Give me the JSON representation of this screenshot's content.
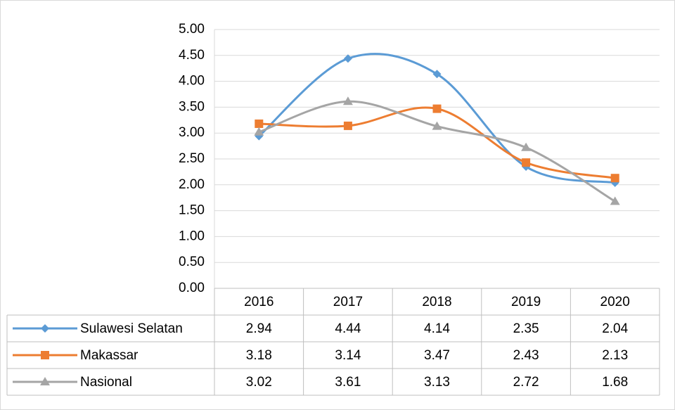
{
  "chart_data": {
    "type": "line",
    "smooth": true,
    "categories": [
      "2016",
      "2017",
      "2018",
      "2019",
      "2020"
    ],
    "series": [
      {
        "name": "Sulawesi Selatan",
        "color": "#5b9bd5",
        "marker": "diamond",
        "values": [
          2.94,
          4.44,
          4.14,
          2.35,
          2.04
        ]
      },
      {
        "name": "Makassar",
        "color": "#ed7d31",
        "marker": "square",
        "values": [
          3.18,
          3.14,
          3.47,
          2.43,
          2.13
        ]
      },
      {
        "name": "Nasional",
        "color": "#a5a5a5",
        "marker": "triangle",
        "values": [
          3.02,
          3.61,
          3.13,
          2.72,
          1.68
        ]
      }
    ],
    "ylim": [
      0,
      5
    ],
    "yticks": [
      {
        "value": 0,
        "label": "0.00"
      },
      {
        "value": 0.5,
        "label": "0.50"
      },
      {
        "value": 1,
        "label": "1.00"
      },
      {
        "value": 1.5,
        "label": "1.50"
      },
      {
        "value": 2,
        "label": "2.00"
      },
      {
        "value": 2.5,
        "label": "2.50"
      },
      {
        "value": 3,
        "label": "3.00"
      },
      {
        "value": 3.5,
        "label": "3.50"
      },
      {
        "value": 4,
        "label": "4.00"
      },
      {
        "value": 4.5,
        "label": "4.50"
      },
      {
        "value": 5,
        "label": "5.00"
      }
    ],
    "grid": true,
    "data_table": true
  }
}
